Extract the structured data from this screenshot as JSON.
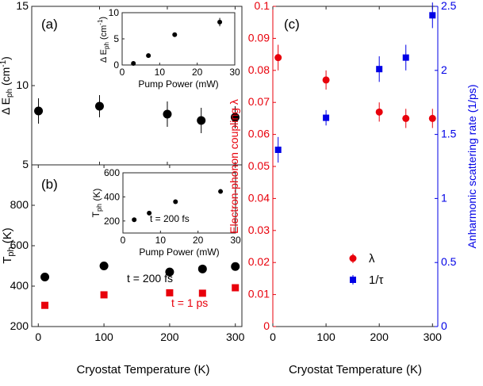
{
  "chart_data": [
    {
      "panel": "a",
      "type": "scatter",
      "panel_label": "(a)",
      "ylabel": "Δ E_ph (cm⁻¹)",
      "ylabel_main": "Δ E",
      "ylabel_sub": "ph",
      "ylabel_unit_pre": " (cm",
      "ylabel_unit_sup": "-1",
      "ylabel_unit_post": ")",
      "xlim": [
        0,
        310
      ],
      "ylim": [
        5,
        15
      ],
      "yticks": [
        5,
        10,
        15
      ],
      "xticks": [
        0,
        100,
        200,
        300
      ],
      "series": [
        {
          "color": "#000000",
          "marker": "circle",
          "x": [
            10,
            100,
            200,
            250,
            300
          ],
          "y": [
            8.4,
            8.7,
            8.2,
            7.8,
            8.0
          ],
          "yerr": [
            0.8,
            0.7,
            0.8,
            0.8,
            0.7
          ]
        }
      ],
      "inset": {
        "type": "scatter",
        "ylabel_main": "Δ E",
        "ylabel_sub": "ph",
        "ylabel_unit_pre": " (cm",
        "ylabel_unit_sup": "-1",
        "ylabel_unit_post": ")",
        "xlabel": "Pump Power (mW)",
        "xlim": [
          0,
          30
        ],
        "ylim": [
          0,
          10
        ],
        "xticks": [
          0,
          10,
          20,
          30
        ],
        "yticks": [
          0,
          5,
          10
        ],
        "x": [
          3,
          7,
          14,
          26
        ],
        "y": [
          0.3,
          1.8,
          5.8,
          8.2
        ],
        "yerr": [
          0,
          0,
          0,
          0.8
        ]
      }
    },
    {
      "panel": "b",
      "type": "scatter",
      "panel_label": "(b)",
      "ylabel_main": "T",
      "ylabel_sub": "ph",
      "ylabel_unit_post": " (K)",
      "xlabel": "Cryostat Temperature (K)",
      "xlim": [
        -10,
        310
      ],
      "ylim": [
        200,
        1000
      ],
      "yticks": [
        200,
        400,
        600,
        800
      ],
      "xticks": [
        0,
        100,
        200,
        300
      ],
      "series": [
        {
          "name": "t = 200 fs",
          "color": "#000000",
          "marker": "circle",
          "x": [
            10,
            100,
            200,
            250,
            300
          ],
          "y": [
            445,
            500,
            470,
            485,
            497
          ]
        },
        {
          "name": "t = 1 ps",
          "color": "#e8000b",
          "marker": "square",
          "x": [
            10,
            100,
            200,
            250,
            300
          ],
          "y": [
            305,
            357,
            367,
            365,
            392
          ]
        }
      ],
      "inset": {
        "type": "scatter",
        "ylabel_main": "T",
        "ylabel_sub": "ph",
        "ylabel_unit_post": " (K)",
        "xlabel": "Pump Power (mW)",
        "annotation": "t = 200 fs",
        "xlim": [
          0,
          30
        ],
        "ylim": [
          100,
          600
        ],
        "xticks": [
          0,
          10,
          20,
          30
        ],
        "yticks": [
          200,
          400,
          600
        ],
        "x": [
          3,
          7,
          14,
          26
        ],
        "y": [
          210,
          265,
          360,
          445
        ]
      }
    },
    {
      "panel": "c",
      "type": "scatter",
      "panel_label": "(c)",
      "xlabel": "Cryostat Temperature (K)",
      "ylabel_left": "Electron-phonon coupling λ",
      "ylabel_right": "Anharmonic scattering rate (1/ps)",
      "xlim": [
        0,
        310
      ],
      "ylim_left": [
        0,
        0.1
      ],
      "ylim_right": [
        0,
        2.5
      ],
      "xticks": [
        0,
        100,
        200,
        300
      ],
      "yticks_left": [
        "0",
        "0.01",
        "0.02",
        "0.03",
        "0.04",
        "0.05",
        "0.06",
        "0.07",
        "0.08",
        "0.09",
        "0.1"
      ],
      "yticks_right": [
        "0",
        "0.5",
        "1",
        "1.5",
        "2",
        "2.5"
      ],
      "left_color": "#e8000b",
      "right_color": "#0000e6",
      "legend_position": "lower-right",
      "series": [
        {
          "name": "λ",
          "axis": "left",
          "color": "#e8000b",
          "marker": "circle",
          "x": [
            10,
            100,
            200,
            250,
            300
          ],
          "y": [
            0.084,
            0.077,
            0.067,
            0.065,
            0.065
          ],
          "yerr": [
            0.004,
            0.003,
            0.003,
            0.003,
            0.003
          ]
        },
        {
          "name": "1/τ",
          "axis": "right",
          "color": "#0000e6",
          "marker": "square",
          "x": [
            10,
            100,
            200,
            250,
            300
          ],
          "y": [
            1.38,
            1.63,
            2.01,
            2.1,
            2.43
          ],
          "yerr": [
            0.1,
            0.06,
            0.1,
            0.1,
            0.1
          ]
        }
      ]
    }
  ]
}
